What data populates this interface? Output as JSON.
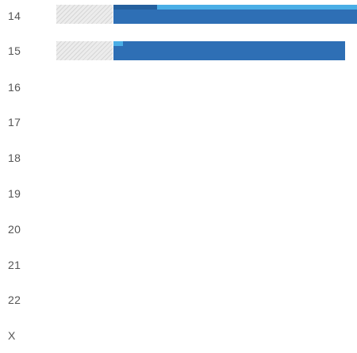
{
  "rows": [
    {
      "label": "14",
      "progress_fraction": 1.0,
      "accent_color": "#4aaee6",
      "bar_color": "#2e6fb5"
    },
    {
      "label": "15",
      "progress_fraction": 0.95,
      "accent_color": "#4aaee6",
      "bar_color": "#2e6fb5"
    },
    {
      "label": "16"
    },
    {
      "label": "17"
    },
    {
      "label": "18"
    },
    {
      "label": "19"
    },
    {
      "label": "20"
    },
    {
      "label": "21"
    },
    {
      "label": "22"
    },
    {
      "label": "X"
    }
  ]
}
